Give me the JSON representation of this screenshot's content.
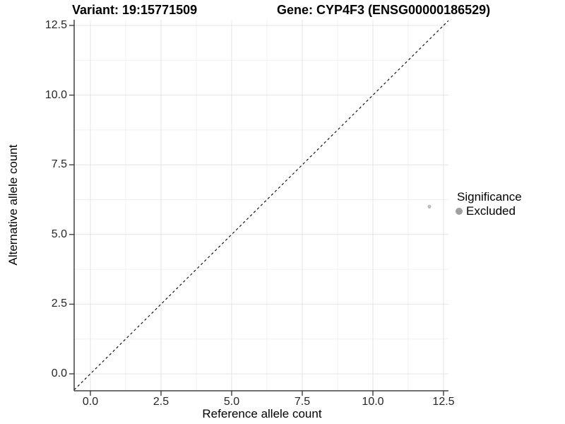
{
  "chart_data": {
    "type": "scatter",
    "title_left": "Variant: 19:15771509",
    "title_right": "Gene: CYP4F3 (ENSG00000186529)",
    "xlabel": "Reference allele count",
    "ylabel": "Alternative allele count",
    "xlim": [
      -0.6,
      12.7
    ],
    "ylim": [
      -0.6,
      12.7
    ],
    "x_ticks": [
      0.0,
      2.5,
      5.0,
      7.5,
      10.0,
      12.5
    ],
    "y_ticks": [
      0.0,
      2.5,
      5.0,
      7.5,
      10.0,
      12.5
    ],
    "x_tick_labels": [
      "0.0",
      "2.5",
      "5.0",
      "7.5",
      "10.0",
      "12.5"
    ],
    "y_tick_labels": [
      "0.0",
      "2.5",
      "5.0",
      "7.5",
      "10.0",
      "12.5"
    ],
    "x_minor_ticks": [
      1.25,
      3.75,
      6.25,
      8.75,
      11.25
    ],
    "y_minor_ticks": [
      1.25,
      3.75,
      6.25,
      8.75,
      11.25
    ],
    "grid": true,
    "identity_line": {
      "type": "dashed",
      "slope": 1,
      "intercept": 0,
      "color": "#000000"
    },
    "series": [
      {
        "name": "Excluded",
        "color": "#bfbfbf",
        "point_radius": 2.6,
        "points": [
          {
            "x": 12,
            "y": 6
          }
        ]
      }
    ],
    "legend": {
      "position": "right",
      "title": "Significance",
      "items": [
        {
          "label": "Excluded",
          "color": "#a0a0a0"
        }
      ]
    },
    "colors": {
      "background": "#ffffff",
      "grid_major": "#e4e4e4",
      "grid_minor": "#f0f0f0",
      "axis_line": "#404040",
      "tick_mark": "#333333",
      "tick_text": "#262626",
      "title_text": "#000000"
    }
  }
}
